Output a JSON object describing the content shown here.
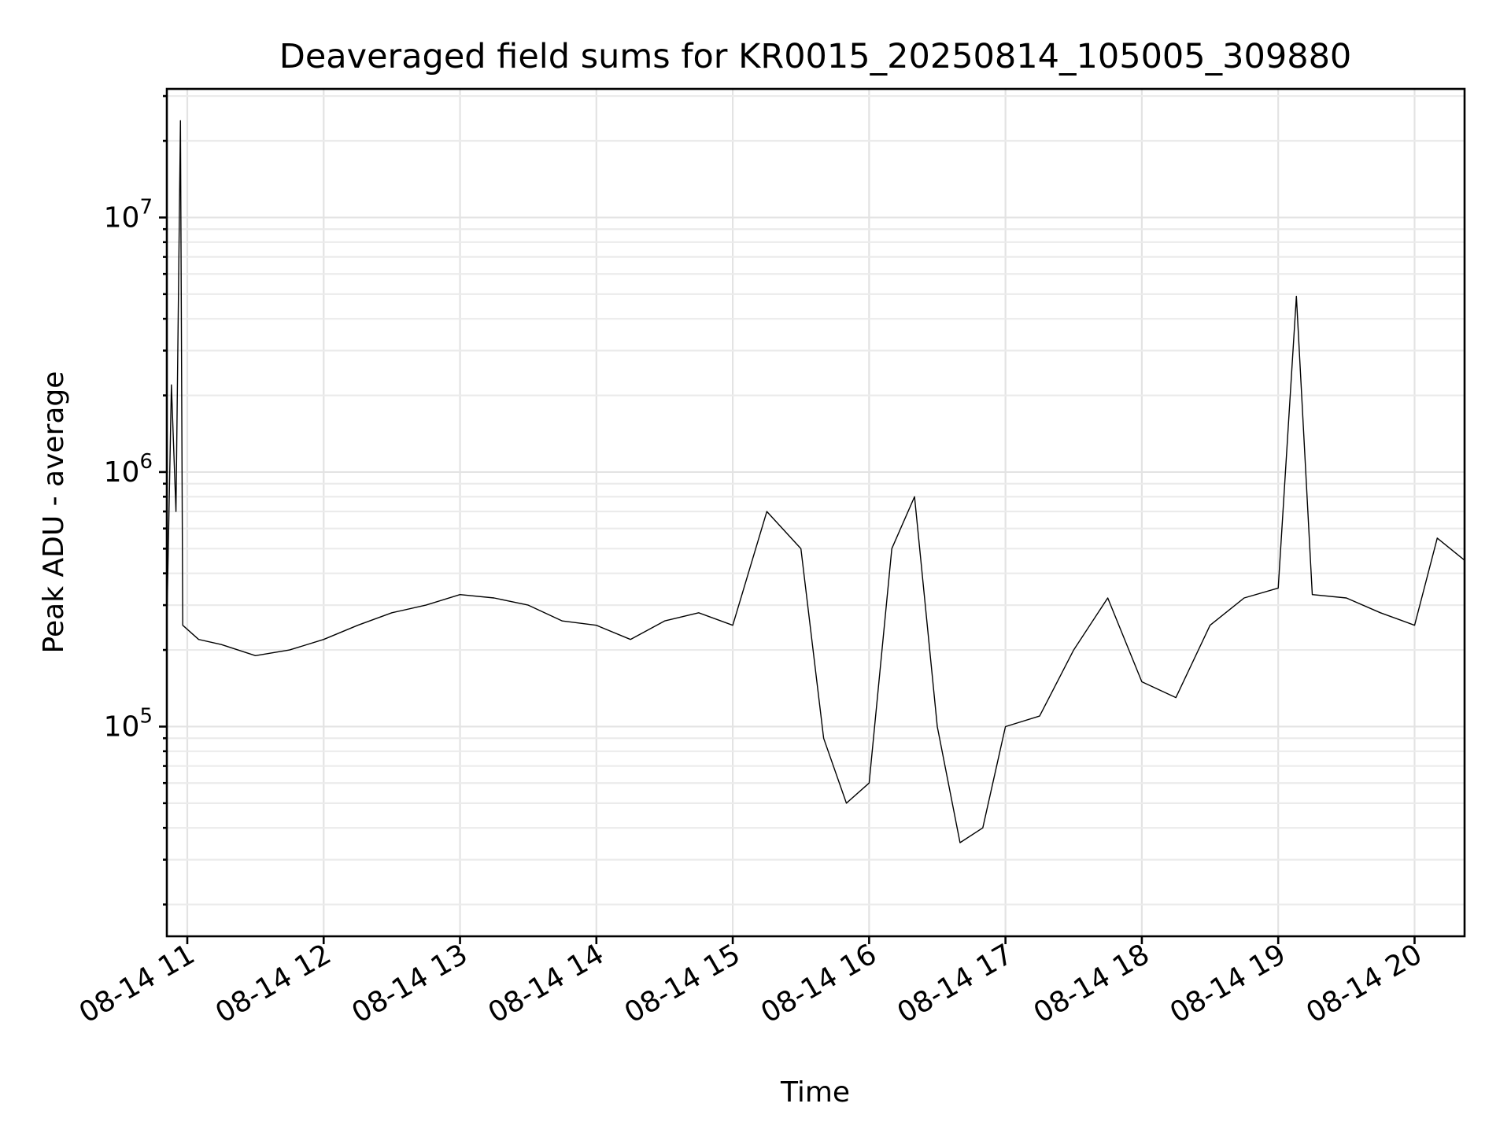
{
  "chart_data": {
    "type": "line",
    "title": "Deaveraged field sums for KR0015_20250814_105005_309880",
    "xlabel": "Time",
    "ylabel": "Peak ADU - average",
    "yscale": "log",
    "grid": true,
    "xlim": [
      "2025-08-14 10:51",
      "2025-08-14 20:22"
    ],
    "ylim": [
      15000,
      32000000
    ],
    "x_ticks": [
      {
        "value": "2025-08-14 11:00",
        "label": "08-14 11"
      },
      {
        "value": "2025-08-14 12:00",
        "label": "08-14 12"
      },
      {
        "value": "2025-08-14 13:00",
        "label": "08-14 13"
      },
      {
        "value": "2025-08-14 14:00",
        "label": "08-14 14"
      },
      {
        "value": "2025-08-14 15:00",
        "label": "08-14 15"
      },
      {
        "value": "2025-08-14 16:00",
        "label": "08-14 16"
      },
      {
        "value": "2025-08-14 17:00",
        "label": "08-14 17"
      },
      {
        "value": "2025-08-14 18:00",
        "label": "08-14 18"
      },
      {
        "value": "2025-08-14 19:00",
        "label": "08-14 19"
      },
      {
        "value": "2025-08-14 20:00",
        "label": "08-14 20"
      }
    ],
    "y_ticks": [
      {
        "value": 100000,
        "base": "10",
        "exp": "5"
      },
      {
        "value": 1000000,
        "base": "10",
        "exp": "6"
      },
      {
        "value": 10000000,
        "base": "10",
        "exp": "7"
      }
    ],
    "series": [
      {
        "color": "#000000",
        "x": [
          "2025-08-14 10:51",
          "2025-08-14 10:53",
          "2025-08-14 10:55",
          "2025-08-14 10:57",
          "2025-08-14 10:58",
          "2025-08-14 11:05",
          "2025-08-14 11:15",
          "2025-08-14 11:30",
          "2025-08-14 11:45",
          "2025-08-14 12:00",
          "2025-08-14 12:15",
          "2025-08-14 12:30",
          "2025-08-14 12:45",
          "2025-08-14 13:00",
          "2025-08-14 13:15",
          "2025-08-14 13:30",
          "2025-08-14 13:45",
          "2025-08-14 14:00",
          "2025-08-14 14:15",
          "2025-08-14 14:30",
          "2025-08-14 14:45",
          "2025-08-14 15:00",
          "2025-08-14 15:15",
          "2025-08-14 15:30",
          "2025-08-14 15:40",
          "2025-08-14 15:50",
          "2025-08-14 16:00",
          "2025-08-14 16:10",
          "2025-08-14 16:20",
          "2025-08-14 16:30",
          "2025-08-14 16:40",
          "2025-08-14 16:50",
          "2025-08-14 17:00",
          "2025-08-14 17:15",
          "2025-08-14 17:30",
          "2025-08-14 17:45",
          "2025-08-14 18:00",
          "2025-08-14 18:15",
          "2025-08-14 18:30",
          "2025-08-14 18:45",
          "2025-08-14 19:00",
          "2025-08-14 19:08",
          "2025-08-14 19:15",
          "2025-08-14 19:30",
          "2025-08-14 19:45",
          "2025-08-14 20:00",
          "2025-08-14 20:10",
          "2025-08-14 20:22"
        ],
        "y": [
          250000,
          2200000,
          700000,
          24000000,
          250000,
          220000,
          210000,
          190000,
          200000,
          220000,
          250000,
          280000,
          300000,
          330000,
          320000,
          300000,
          260000,
          250000,
          220000,
          260000,
          280000,
          250000,
          700000,
          500000,
          90000,
          50000,
          60000,
          500000,
          800000,
          100000,
          35000,
          40000,
          100000,
          110000,
          200000,
          320000,
          150000,
          130000,
          250000,
          320000,
          350000,
          4900000,
          330000,
          320000,
          280000,
          250000,
          550000,
          450000
        ]
      }
    ]
  }
}
